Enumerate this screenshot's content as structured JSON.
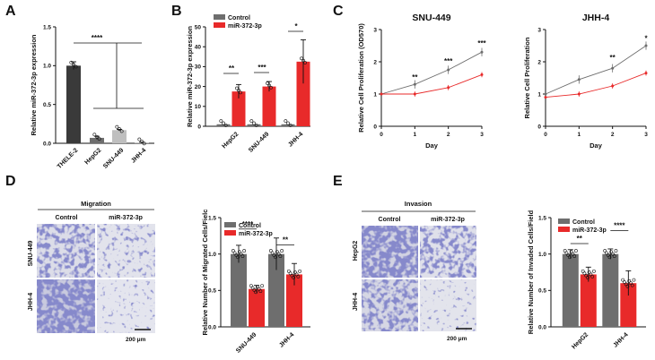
{
  "colors": {
    "control": "#6e6e6e",
    "treated": "#e82a2a",
    "dark": "#3a3a3a",
    "light": "#bfbfbf",
    "stain": "#3d3f9a"
  },
  "panels": {
    "A": "A",
    "B": "B",
    "C": "C",
    "D": "D",
    "E": "E"
  },
  "stain": {
    "migration_title": "Migration",
    "invasion_title": "Invasion",
    "col_control": "Control",
    "col_mir": "miR-372-3p",
    "row_snu": "SNU-449",
    "row_hepg2": "HepG2",
    "row_jhh4": "JHH-4",
    "scale_bar": "200 μm"
  },
  "chart_data": [
    {
      "id": "A",
      "type": "bar",
      "categories": [
        "THELE-2",
        "HepG2",
        "SNU-449",
        "JHH-4"
      ],
      "values": [
        1.0,
        0.07,
        0.17,
        0.01
      ],
      "errors": [
        0.05,
        0.02,
        0.01,
        0.005
      ],
      "ylabel": "Relative miR-372-3p expression",
      "ylim": [
        0,
        1.5
      ],
      "yticks": [
        0,
        0.5,
        1.0,
        1.5
      ],
      "annotations": [
        {
          "text": "****",
          "between": [
            "THELE-2",
            "HepG2/SNU-449/JHH-4"
          ]
        }
      ]
    },
    {
      "id": "B",
      "type": "bar",
      "categories": [
        "HepG2",
        "SNU-449",
        "JHH-4"
      ],
      "series": [
        {
          "name": "Control",
          "values": [
            1.0,
            1.0,
            1.0
          ]
        },
        {
          "name": "miR-372-3p",
          "values": [
            17.5,
            20,
            32.5
          ]
        }
      ],
      "ylabel": "Relative miR-372-3p expression",
      "ylim": [
        0,
        50
      ],
      "yticks": [
        0,
        10,
        20,
        30,
        40,
        50
      ],
      "annotations": [
        "**",
        "***",
        "*"
      ]
    },
    {
      "id": "C1",
      "type": "line",
      "title": "SNU-449",
      "x": [
        0,
        1,
        2,
        3
      ],
      "series": [
        {
          "name": "Control",
          "values": [
            1.0,
            1.3,
            1.75,
            2.3
          ]
        },
        {
          "name": "miR-372-3p",
          "values": [
            1.0,
            1.0,
            1.2,
            1.6
          ]
        }
      ],
      "xlabel": "Day",
      "ylabel": "Relative Cell Proliferation (OD570)",
      "ylim": [
        0,
        3
      ],
      "yticks": [
        0,
        1,
        2,
        3
      ],
      "annotations": [
        "**",
        "***",
        "***"
      ]
    },
    {
      "id": "C2",
      "type": "line",
      "title": "JHH-4",
      "x": [
        0,
        1,
        2,
        3
      ],
      "series": [
        {
          "name": "Control",
          "values": [
            1.0,
            1.45,
            1.8,
            2.5
          ]
        },
        {
          "name": "miR-372-3p",
          "values": [
            0.9,
            1.0,
            1.25,
            1.65
          ]
        }
      ],
      "xlabel": "Day",
      "ylabel": "Relative Cell Proliferation",
      "ylim": [
        0,
        3
      ],
      "yticks": [
        0,
        1,
        2,
        3
      ],
      "annotations": [
        "**",
        "*"
      ]
    },
    {
      "id": "D",
      "type": "bar",
      "categories": [
        "SNU-449",
        "JHH-4"
      ],
      "series": [
        {
          "name": "Control",
          "values": [
            1.0,
            1.0
          ]
        },
        {
          "name": "miR-372-3p",
          "values": [
            0.52,
            0.72
          ]
        }
      ],
      "ylabel": "Relative Number of Migrated Cells/Fielc",
      "ylim": [
        0,
        1.5
      ],
      "yticks": [
        0,
        0.5,
        1.0,
        1.5
      ],
      "annotations": [
        "****",
        "**"
      ]
    },
    {
      "id": "E",
      "type": "bar",
      "categories": [
        "HepG2",
        "JHH-4"
      ],
      "series": [
        {
          "name": "Control",
          "values": [
            1.0,
            1.0
          ]
        },
        {
          "name": "miR-372-3p",
          "values": [
            0.72,
            0.6
          ]
        }
      ],
      "ylabel": "Relative Number of Invaded Cells/Field",
      "ylim": [
        0,
        1.5
      ],
      "yticks": [
        0,
        0.5,
        1.0,
        1.5
      ],
      "annotations": [
        "**",
        "****"
      ]
    }
  ]
}
